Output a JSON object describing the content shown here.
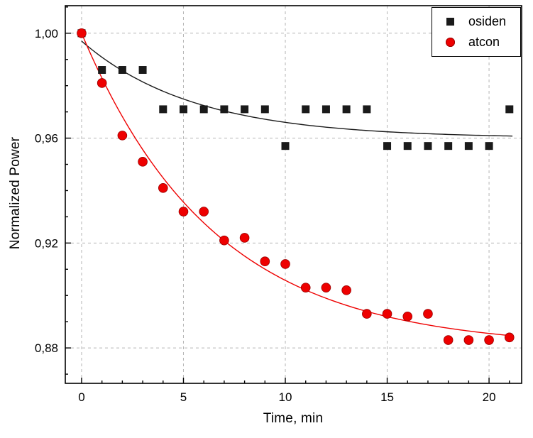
{
  "chart_data": {
    "type": "scatter",
    "title": "",
    "xlabel": "Time, min",
    "ylabel": "Normalized Power",
    "xlim": [
      -0.8,
      21.6
    ],
    "ylim": [
      0.8665,
      1.0105
    ],
    "xticks": [
      0,
      5,
      10,
      15,
      20
    ],
    "xtick_labels": [
      "0",
      "5",
      "10",
      "15",
      "20"
    ],
    "x_minor_step": 1,
    "yticks": [
      0.88,
      0.92,
      0.96,
      1.0
    ],
    "ytick_labels": [
      "0,88",
      "0,92",
      "0,96",
      "1,00"
    ],
    "y_minor_step": 0.01,
    "grid": {
      "show": true,
      "style": "dashed",
      "color": "#b5b5b5"
    },
    "legend": {
      "position": "top-right"
    },
    "x": [
      0,
      1,
      2,
      3,
      4,
      5,
      6,
      7,
      8,
      9,
      10,
      11,
      12,
      13,
      14,
      15,
      16,
      17,
      18,
      19,
      20,
      21
    ],
    "series": [
      {
        "name": "osiden",
        "marker": "square",
        "color": "#1a1a1a",
        "edge_color": "#000000",
        "values": [
          1.0,
          0.986,
          0.986,
          0.986,
          0.971,
          0.971,
          0.971,
          0.971,
          0.971,
          0.971,
          0.957,
          0.971,
          0.971,
          0.971,
          0.971,
          0.957,
          0.957,
          0.957,
          0.957,
          0.957,
          0.957,
          0.971
        ],
        "fit": {
          "type": "exponential_decay",
          "y0": 0.96,
          "A": 0.037,
          "tau": 5.5
        }
      },
      {
        "name": "atcon",
        "marker": "circle",
        "color": "#ee0000",
        "edge_color": "#990000",
        "values": [
          1.0,
          0.981,
          0.961,
          0.951,
          0.941,
          0.932,
          0.932,
          0.921,
          0.922,
          0.913,
          0.912,
          0.903,
          0.903,
          0.902,
          0.893,
          0.893,
          0.892,
          0.893,
          0.883,
          0.883,
          0.883,
          0.884
        ],
        "fit": {
          "type": "exponential_decay",
          "y0": 0.88,
          "A": 0.12,
          "tau": 6.5
        }
      }
    ]
  }
}
